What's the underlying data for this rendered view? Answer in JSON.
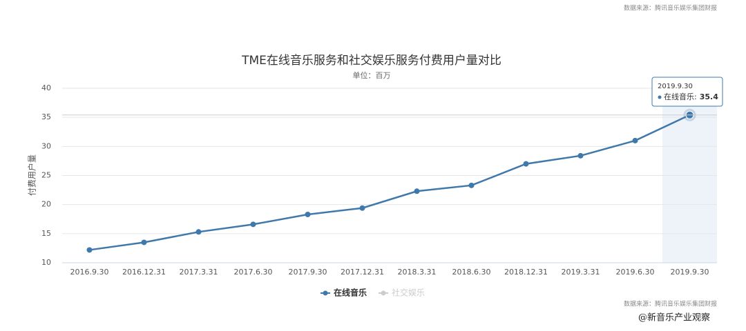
{
  "chart_data": {
    "type": "line",
    "title": "TME在线音乐服务和社交娱乐服务付费用户量对比",
    "subtitle": "单位：百万",
    "y_label": "付费用户量",
    "source": "数据来源：腾讯音乐娱乐集团财报",
    "watermark": "@新音乐产业观察",
    "categories": [
      "2016.9.30",
      "2016.12.31",
      "2017.3.31",
      "2017.6.30",
      "2017.9.30",
      "2017.12.31",
      "2018.3.31",
      "2018.6.30",
      "2018.12.31",
      "2019.3.31",
      "2019.6.30",
      "2019.9.30"
    ],
    "series": [
      {
        "name": "在线音乐",
        "color": "#3f78aa",
        "values": [
          12.2,
          13.5,
          15.3,
          16.6,
          18.3,
          19.4,
          22.3,
          23.3,
          27.0,
          28.4,
          31.0,
          35.4
        ]
      },
      {
        "name": "社交娱乐",
        "color": "#cccccc",
        "hidden": true,
        "values": [
          null,
          null,
          null,
          null,
          null,
          null,
          null,
          null,
          null,
          null,
          null,
          null
        ]
      }
    ],
    "ylim": [
      10,
      40
    ],
    "yticks": [
      10,
      15,
      20,
      25,
      30,
      35,
      40
    ],
    "grid": true,
    "legend": "bottom",
    "tooltip": {
      "index": 11,
      "series_label": "在线音乐:"
    }
  }
}
